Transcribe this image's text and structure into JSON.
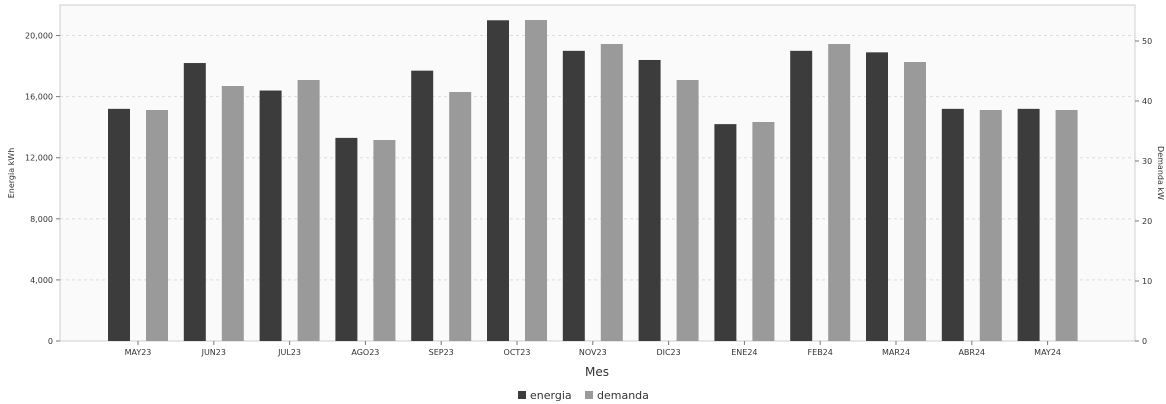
{
  "chart_data": {
    "type": "bar",
    "categories": [
      "MAY23",
      "JUN23",
      "JUL23",
      "AGO23",
      "SEP23",
      "OCT23",
      "NOV23",
      "DIC23",
      "ENE24",
      "FEB24",
      "MAR24",
      "ABR24",
      "MAY24"
    ],
    "series": [
      {
        "name": "energia",
        "axis": "left",
        "color": "#3c3c3c",
        "values": [
          15200,
          18200,
          16400,
          13300,
          17700,
          21000,
          19000,
          18400,
          14200,
          19000,
          18900,
          15200,
          15200
        ]
      },
      {
        "name": "demanda",
        "axis": "right",
        "color": "#9a9a9a",
        "values": [
          38.5,
          42.5,
          43.5,
          33.5,
          41.5,
          53.5,
          49.5,
          43.5,
          36.5,
          49.5,
          46.5,
          38.5,
          38.5
        ]
      }
    ],
    "xlabel": "Mes",
    "ylabel_left": "Energia kWh",
    "ylabel_right": "Demanda kW",
    "ylim_left": [
      0,
      22000
    ],
    "ylim_right": [
      0,
      56
    ],
    "yticks_left": [
      "0",
      "4,000",
      "8,000",
      "12,000",
      "16,000",
      "20,000"
    ],
    "yticks_left_values": [
      0,
      4000,
      8000,
      12000,
      16000,
      20000
    ],
    "yticks_right": [
      "0",
      "10",
      "20",
      "30",
      "40",
      "50"
    ],
    "yticks_right_values": [
      0,
      10,
      20,
      30,
      40,
      50
    ],
    "grid": true,
    "legend_position": "bottom-center"
  }
}
